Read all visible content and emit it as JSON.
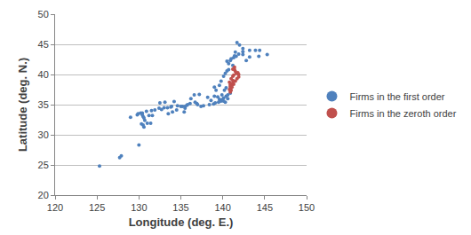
{
  "chart_data": {
    "type": "scatter",
    "x_label": "Longitude (deg. E.)",
    "y_label": "Latitude (deg. N.)",
    "xlim": [
      120,
      150
    ],
    "xticks": [
      120,
      125,
      130,
      135,
      140,
      145,
      150
    ],
    "ylim": [
      20,
      50
    ],
    "yticks": [
      20,
      25,
      30,
      35,
      40,
      45,
      50
    ],
    "grid": true,
    "legend": "right",
    "series": [
      {
        "name": "Firms in the first order",
        "color": "#4f81bd",
        "marker": "circle",
        "x": [
          125.3,
          127.7,
          127.9,
          130.0,
          129.0,
          129.8,
          129.9,
          130.2,
          130.4,
          130.4,
          130.5,
          130.6,
          130.7,
          130.3,
          130.5,
          130.6,
          131.0,
          131.4,
          131.6,
          131.2,
          130.9,
          131.5,
          131.9,
          132.4,
          132.7,
          133.0,
          133.4,
          133.8,
          133.9,
          133.1,
          132.5,
          134.2,
          133.5,
          134.0,
          134.5,
          134.6,
          135.0,
          135.2,
          135.5,
          135.5,
          135.8,
          135.7,
          136.1,
          135.4,
          136.9,
          136.7,
          137.0,
          136.2,
          136.6,
          137.2,
          137.4,
          137.7,
          138.4,
          138.2,
          138.6,
          138.9,
          139.1,
          139.5,
          139.7,
          139.8,
          139.6,
          139.9,
          140.1,
          140.3,
          140.1,
          140.4,
          139.9,
          139.0,
          139.2,
          139.0,
          139.6,
          139.8,
          140.1,
          140.3,
          140.5,
          140.7,
          140.6,
          140.9,
          140.2,
          140.4,
          140.6,
          139.4,
          141.2,
          140.7,
          140.5,
          140.9,
          141.0,
          141.3,
          141.4,
          141.6,
          141.9,
          141.5,
          142.4,
          142.4,
          141.7,
          143.2,
          143.9,
          144.3,
          145.3,
          143.2,
          142.8,
          144.4,
          142.0,
          142.4
        ],
        "y": [
          24.8,
          26.2,
          26.5,
          28.3,
          32.9,
          33.3,
          33.5,
          33.6,
          33.6,
          33.3,
          33.0,
          32.8,
          32.4,
          31.8,
          31.6,
          31.3,
          31.9,
          31.9,
          33.2,
          33.2,
          33.9,
          34.0,
          34.1,
          34.4,
          34.2,
          34.5,
          34.5,
          34.6,
          34.7,
          35.4,
          35.3,
          35.5,
          33.5,
          33.8,
          34.1,
          34.8,
          34.7,
          34.7,
          34.7,
          34.4,
          35.0,
          34.9,
          35.2,
          33.8,
          35.2,
          35.4,
          35.0,
          36.0,
          36.6,
          36.7,
          34.7,
          34.8,
          35.0,
          36.2,
          35.7,
          35.1,
          35.3,
          35.4,
          35.7,
          35.6,
          35.9,
          35.8,
          35.6,
          35.4,
          36.1,
          36.4,
          36.6,
          36.4,
          37.4,
          37.9,
          38.2,
          38.9,
          39.7,
          40.2,
          40.6,
          40.8,
          36.6,
          36.9,
          37.4,
          37.8,
          36.0,
          36.3,
          41.5,
          41.8,
          42.2,
          42.3,
          42.6,
          42.8,
          43.1,
          43.0,
          43.4,
          43.7,
          43.8,
          44.3,
          45.3,
          44.0,
          44.0,
          43.0,
          43.3,
          42.9,
          42.3,
          44.0,
          44.9,
          43.3
        ]
      },
      {
        "name": "Firms in the zeroth order",
        "color": "#c0504d",
        "marker": "circle",
        "x": [
          140.9,
          141.0,
          140.9,
          140.9,
          141.0,
          140.9,
          141.1,
          141.3,
          141.2,
          141.5,
          141.2,
          141.7,
          141.9,
          141.2,
          141.9,
          141.8,
          141.5,
          141.4,
          141.2,
          141.4,
          140.8,
          141.0,
          141.3,
          141.6,
          141.1,
          140.8
        ],
        "y": [
          37.1,
          37.4,
          37.7,
          38.0,
          38.2,
          38.3,
          38.3,
          38.4,
          38.6,
          38.9,
          39.0,
          39.3,
          39.6,
          39.7,
          40.0,
          40.3,
          40.5,
          40.8,
          40.9,
          41.2,
          38.7,
          39.3,
          39.9,
          40.2,
          37.9,
          37.5
        ]
      }
    ]
  }
}
